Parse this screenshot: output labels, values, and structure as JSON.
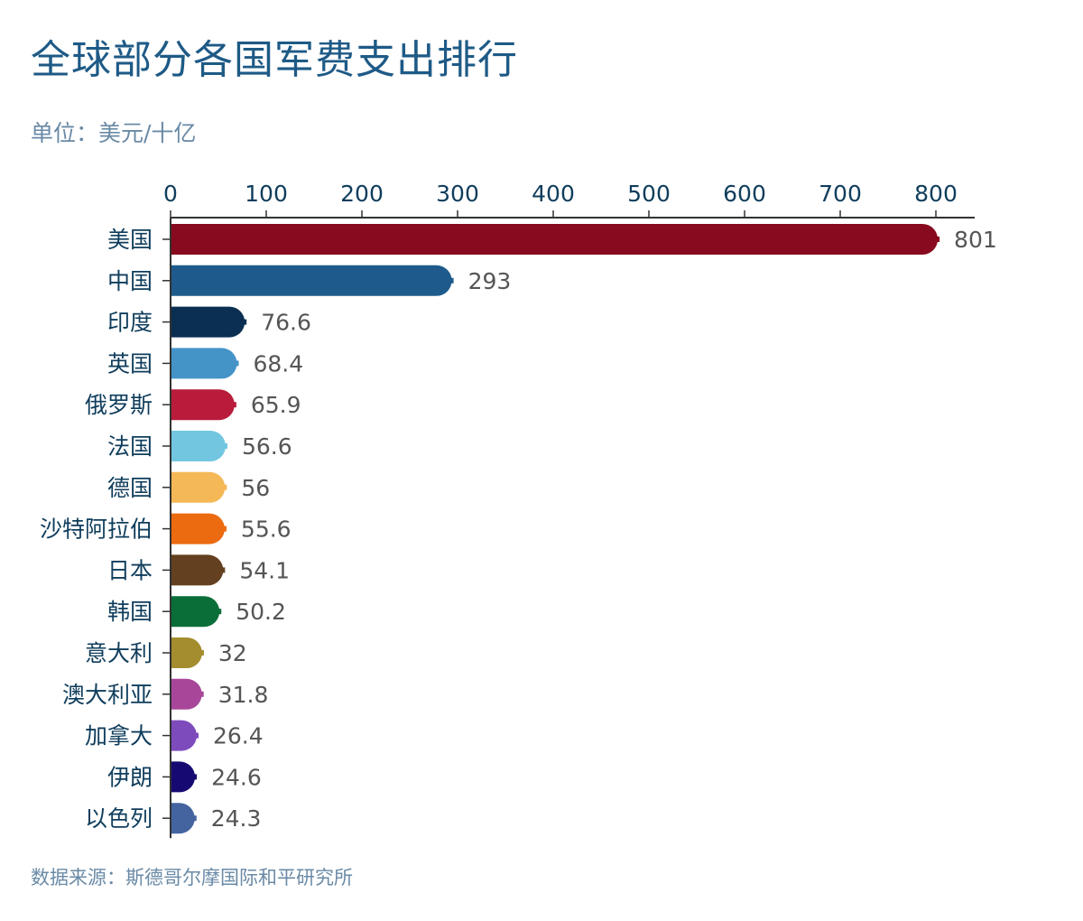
{
  "title": "全球部分各国军费支出排行",
  "unit": "单位：美元/十亿",
  "source": "数据来源：斯德哥尔摩国际和平研究所",
  "chart_data": {
    "type": "bar",
    "orientation": "horizontal",
    "title": "全球部分各国军费支出排行",
    "xlabel": "",
    "ylabel": "",
    "xlim": [
      0,
      840
    ],
    "x_ticks": [
      0,
      100,
      200,
      300,
      400,
      500,
      600,
      700,
      800
    ],
    "tick_labels": [
      "0",
      "100",
      "200",
      "300",
      "400",
      "500",
      "600",
      "700",
      "800"
    ],
    "axis_position": "top",
    "categories": [
      "美国",
      "中国",
      "印度",
      "英国",
      "俄罗斯",
      "法国",
      "德国",
      "沙特阿拉伯",
      "日本",
      "韩国",
      "意大利",
      "澳大利亚",
      "加拿大",
      "伊朗",
      "以色列"
    ],
    "values": [
      801,
      293,
      76.6,
      68.4,
      65.9,
      56.6,
      56,
      55.6,
      54.1,
      50.2,
      32,
      31.8,
      26.4,
      24.6,
      24.3
    ],
    "value_labels": [
      "801",
      "293",
      "76.6",
      "68.4",
      "65.9",
      "56.6",
      "56",
      "55.6",
      "54.1",
      "50.2",
      "32",
      "31.8",
      "26.4",
      "24.6",
      "24.3"
    ],
    "colors": [
      "#870a1e",
      "#1e5b8c",
      "#0a2f52",
      "#4494c8",
      "#b81c3a",
      "#72c6e0",
      "#f5b857",
      "#ec6a10",
      "#63401f",
      "#0a6e38",
      "#a38d2e",
      "#a8479a",
      "#7e4bbd",
      "#160a72",
      "#4464a0"
    ]
  }
}
